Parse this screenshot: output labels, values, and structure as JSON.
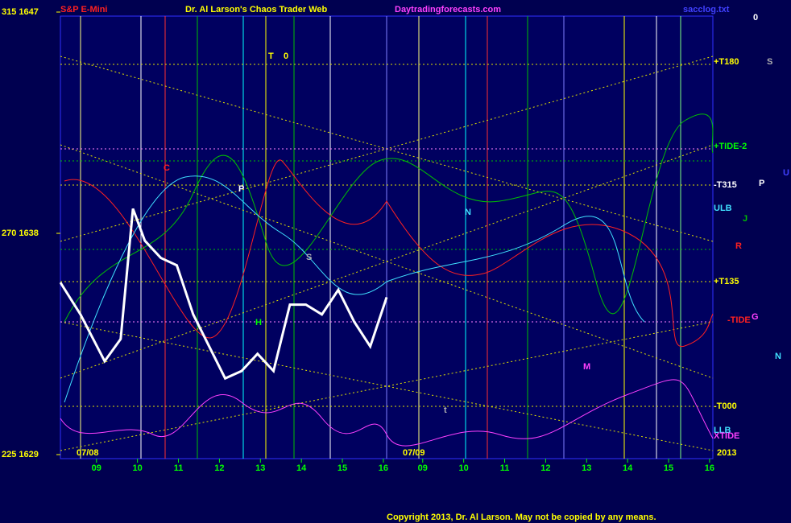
{
  "chart_data": {
    "type": "line",
    "title": "Dr. Al Larson's Chaos Trader Web",
    "instrument": "S&P E-Mini",
    "site": "Daytradingforecasts.com",
    "file": "sacclog.txt",
    "copyright": "Copyright 2013, Dr. Al Larson. May not be copied by any means.",
    "ylim": [
      1629,
      1647
    ],
    "yticks": [
      {
        "value": 1629,
        "label": "225 1629"
      },
      {
        "value": 1638,
        "label": "270 1638"
      },
      {
        "value": 1647,
        "label": "315 1647"
      }
    ],
    "xlim": [
      8.12,
      16.08
    ],
    "xticks": [
      {
        "value": 9,
        "label": "09"
      },
      {
        "value": 10,
        "label": "10"
      },
      {
        "value": 11,
        "label": "11"
      },
      {
        "value": 12,
        "label": "12"
      },
      {
        "value": 13,
        "label": "13"
      },
      {
        "value": 14,
        "label": "14"
      },
      {
        "value": 15,
        "label": "15"
      },
      {
        "value": 16,
        "label": "16"
      }
    ],
    "dates": [
      "07/08",
      "07/09"
    ],
    "year": "2013",
    "series": [
      {
        "name": "S&P E-Mini",
        "color": "#ffffff",
        "x": [
          8.12,
          8.61,
          9.2,
          9.59,
          9.89,
          10.18,
          10.57,
          10.96,
          11.36,
          11.75,
          12.14,
          12.54,
          12.93,
          13.32,
          13.72,
          14.11,
          14.5,
          14.9,
          15.29,
          15.68,
          16.08
        ],
        "values": [
          1636.0,
          1634.7,
          1632.8,
          1633.7,
          1639.0,
          1637.7,
          1637.0,
          1636.7,
          1634.7,
          1633.4,
          1632.1,
          1632.4,
          1633.1,
          1632.4,
          1635.1,
          1635.1,
          1634.7,
          1635.7,
          1634.4,
          1633.4,
          1635.4
        ]
      }
    ],
    "right_labels": [
      "+T180",
      "+TIDE-2",
      "-T315",
      "ULB",
      "+T135",
      "-TIDE",
      "-T000",
      "LLB",
      "XTIDE"
    ],
    "markers": [
      "0",
      "S",
      "U",
      "P",
      "J",
      "R",
      "G",
      "N",
      "T",
      "0",
      "C",
      "N",
      "P",
      "S",
      "H",
      "M",
      "t"
    ]
  }
}
